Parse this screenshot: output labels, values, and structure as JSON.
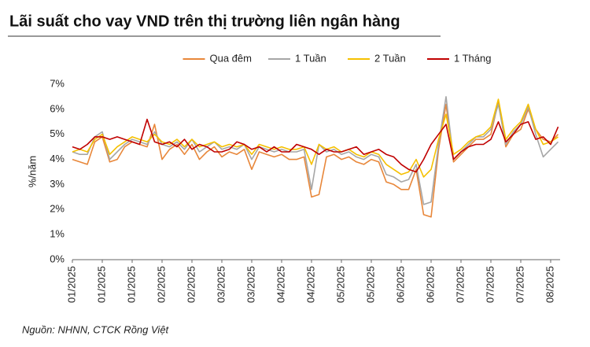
{
  "chart_data": {
    "type": "line",
    "title": "Lãi suất cho vay VND trên thị trường liên ngân hàng",
    "y_label": "%/năm",
    "source": "Nguồn: NHNN, CTCK Rồng Việt",
    "legend": "top",
    "grid": false,
    "categories": [
      "01/2025",
      null,
      null,
      null,
      "01/2025",
      null,
      null,
      null,
      "01/2025",
      null,
      null,
      null,
      "02/2025",
      null,
      null,
      null,
      "02/2025",
      null,
      null,
      null,
      "03/2025",
      null,
      null,
      null,
      "03/2025",
      null,
      null,
      null,
      "04/2025",
      null,
      null,
      null,
      "04/2025",
      null,
      null,
      null,
      "05/2025",
      null,
      null,
      null,
      "05/2025",
      null,
      null,
      null,
      "06/2025",
      null,
      null,
      null,
      "06/2025",
      null,
      null,
      null,
      "07/2025",
      null,
      null,
      null,
      "07/2025",
      null,
      null,
      null,
      "07/2025",
      null,
      null,
      null,
      "08/2025",
      null
    ],
    "ylim": [
      0,
      7
    ],
    "yticks": [
      {
        "value": 0,
        "label": "0%"
      },
      {
        "value": 1,
        "label": "1%"
      },
      {
        "value": 2,
        "label": "2%"
      },
      {
        "value": 3,
        "label": "3%"
      },
      {
        "value": 4,
        "label": "4%"
      },
      {
        "value": 5,
        "label": "5%"
      },
      {
        "value": 6,
        "label": "6%"
      },
      {
        "value": 7,
        "label": "7%"
      }
    ],
    "series": [
      {
        "name": "Qua đêm",
        "color": "#e8873a",
        "values": [
          4.0,
          3.9,
          3.8,
          4.7,
          4.9,
          3.9,
          4.0,
          4.5,
          4.7,
          4.6,
          4.5,
          5.4,
          4.0,
          4.4,
          4.6,
          4.2,
          4.6,
          4.0,
          4.3,
          4.5,
          4.1,
          4.3,
          4.2,
          4.4,
          3.6,
          4.3,
          4.2,
          4.1,
          4.2,
          4.0,
          4.0,
          4.1,
          2.5,
          2.6,
          4.1,
          4.2,
          4.0,
          4.1,
          3.9,
          3.8,
          4.0,
          3.9,
          3.1,
          3.0,
          2.8,
          2.8,
          3.6,
          1.8,
          1.7,
          4.4,
          6.2,
          3.9,
          4.2,
          4.5,
          4.8,
          4.8,
          5.0,
          6.3,
          4.5,
          5.0,
          5.2,
          6.0,
          5.2,
          4.8,
          4.7,
          5.0
        ]
      },
      {
        "name": "1 Tuần",
        "color": "#a6a6a6",
        "values": [
          4.3,
          4.2,
          4.2,
          4.9,
          5.1,
          4.0,
          4.3,
          4.6,
          4.8,
          4.7,
          4.6,
          5.1,
          4.6,
          4.5,
          4.7,
          4.4,
          4.8,
          4.3,
          4.5,
          4.7,
          4.4,
          4.5,
          4.4,
          4.6,
          4.0,
          4.5,
          4.4,
          4.3,
          4.4,
          4.3,
          4.3,
          4.4,
          2.8,
          4.6,
          4.3,
          4.4,
          4.2,
          4.3,
          4.1,
          4.0,
          4.2,
          4.1,
          3.4,
          3.3,
          3.1,
          3.2,
          3.8,
          2.2,
          2.3,
          4.6,
          6.5,
          4.0,
          4.3,
          4.6,
          4.9,
          4.9,
          5.2,
          6.2,
          4.6,
          5.1,
          5.4,
          6.1,
          5.0,
          4.1,
          4.4,
          4.7
        ]
      },
      {
        "name": "2 Tuần",
        "color": "#f5c000",
        "values": [
          4.3,
          4.4,
          4.3,
          4.8,
          5.0,
          4.2,
          4.5,
          4.7,
          4.9,
          4.8,
          4.7,
          5.0,
          4.7,
          4.6,
          4.8,
          4.5,
          4.8,
          4.5,
          4.6,
          4.7,
          4.5,
          4.6,
          4.5,
          4.6,
          4.2,
          4.6,
          4.5,
          4.4,
          4.5,
          4.4,
          4.4,
          4.5,
          3.8,
          4.6,
          4.4,
          4.5,
          4.3,
          4.4,
          4.2,
          4.1,
          4.3,
          4.2,
          3.8,
          3.6,
          3.4,
          3.5,
          4.0,
          3.3,
          3.6,
          4.8,
          5.8,
          4.2,
          4.4,
          4.7,
          4.9,
          5.0,
          5.3,
          6.4,
          4.8,
          5.2,
          5.5,
          6.2,
          5.2,
          4.6,
          4.7,
          4.9
        ]
      },
      {
        "name": "1 Tháng",
        "color": "#c00000",
        "values": [
          4.5,
          4.4,
          4.6,
          4.9,
          4.9,
          4.8,
          4.9,
          4.8,
          4.7,
          4.6,
          5.6,
          4.7,
          4.6,
          4.7,
          4.5,
          4.8,
          4.4,
          4.6,
          4.5,
          4.3,
          4.3,
          4.4,
          4.7,
          4.6,
          4.4,
          4.5,
          4.3,
          4.5,
          4.3,
          4.3,
          4.6,
          4.5,
          4.4,
          4.2,
          4.4,
          4.3,
          4.3,
          4.4,
          4.5,
          4.2,
          4.3,
          4.4,
          4.2,
          4.1,
          3.8,
          3.6,
          3.5,
          4.0,
          4.6,
          5.0,
          5.4,
          4.0,
          4.3,
          4.5,
          4.6,
          4.6,
          4.8,
          5.5,
          4.7,
          5.0,
          5.4,
          5.5,
          4.8,
          4.9,
          4.6,
          5.3
        ]
      }
    ]
  }
}
